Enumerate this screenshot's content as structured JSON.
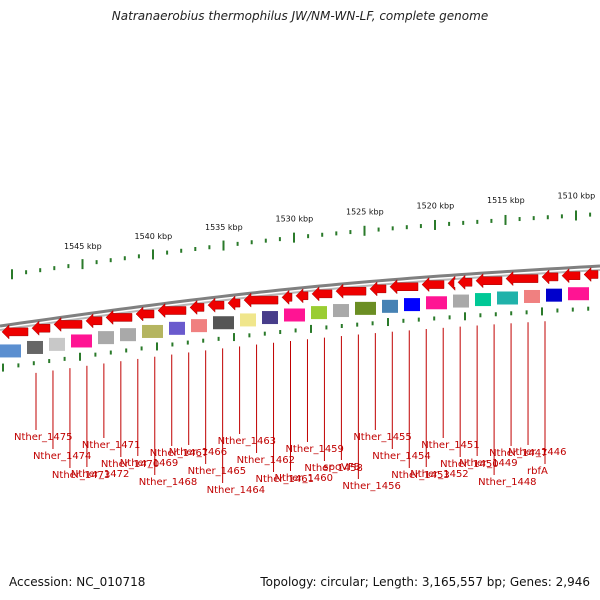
{
  "title": "Natranaerobius thermophilus JW/NM-WN-LF, complete genome",
  "footer": {
    "accession": "Accession: NC_010718",
    "summary": "Topology: circular; Length: 3,165,557 bp; Genes: 2,946"
  },
  "colors": {
    "gene_arrow": "#ee0000",
    "label": "#c00000",
    "tick": "#2a7a2a",
    "backbone": "#808080"
  },
  "scale_labels": [
    "1545 kbp",
    "1540 kbp",
    "1535 kbp",
    "1530 kbp",
    "1525 kbp",
    "1520 kbp",
    "1515 kbp",
    "1510 kbp"
  ],
  "gene_labels": [
    "Nther_1475",
    "Nther_1474",
    "Nther_1473",
    "Nther_1472",
    "Nther_1471",
    "Nther_1470",
    "Nther_1469",
    "Nther_1468",
    "Nther_1467",
    "Nther_1466",
    "Nther_1465",
    "Nther_1464",
    "Nther_1463",
    "Nther_1462",
    "Nther_1461",
    "Nther_1460",
    "Nther_1459",
    "Nther_1458",
    "spoVFB",
    "Nther_1456",
    "Nther_1455",
    "Nther_1454",
    "Nther_1453",
    "Nther_1452",
    "Nther_1451",
    "Nther_1450",
    "Nther_1449",
    "Nther_1448",
    "Nther_1447",
    "Nther_1446",
    "rbfA"
  ],
  "cog_colors": [
    "#5b8fd0",
    "#666666",
    "#c8c8c8",
    "#ff1493",
    "#a9a9a9",
    "#a9a9a9",
    "#b5b560",
    "#6a5acd",
    "#f08080",
    "#555555",
    "#f0e68c",
    "#483d8b",
    "#ff1493",
    "#9acd32",
    "#a9a9a9",
    "#6b8e23",
    "#4682b4",
    "#0000ff",
    "#ff1493",
    "#a9a9a9",
    "#00c896",
    "#20b2aa",
    "#f08080",
    "#0000cc",
    "#ff1493",
    "#f08080",
    "#ff8c00"
  ]
}
